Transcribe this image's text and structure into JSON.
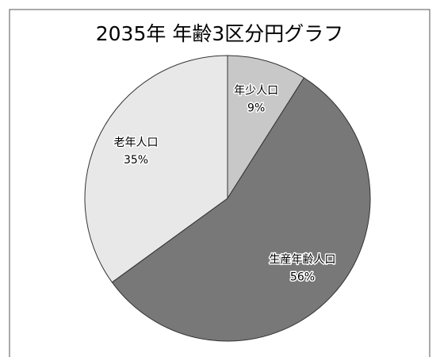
{
  "chart_data": {
    "type": "pie",
    "title": "2035年 年齢3区分円グラフ",
    "categories": [
      "年少人口",
      "生産年齢人口",
      "老年人口"
    ],
    "values": [
      9,
      56,
      35
    ],
    "value_labels": [
      "9%",
      "56%",
      "35%"
    ],
    "colors": [
      "#c8c8c8",
      "#787878",
      "#e8e8e8"
    ]
  }
}
